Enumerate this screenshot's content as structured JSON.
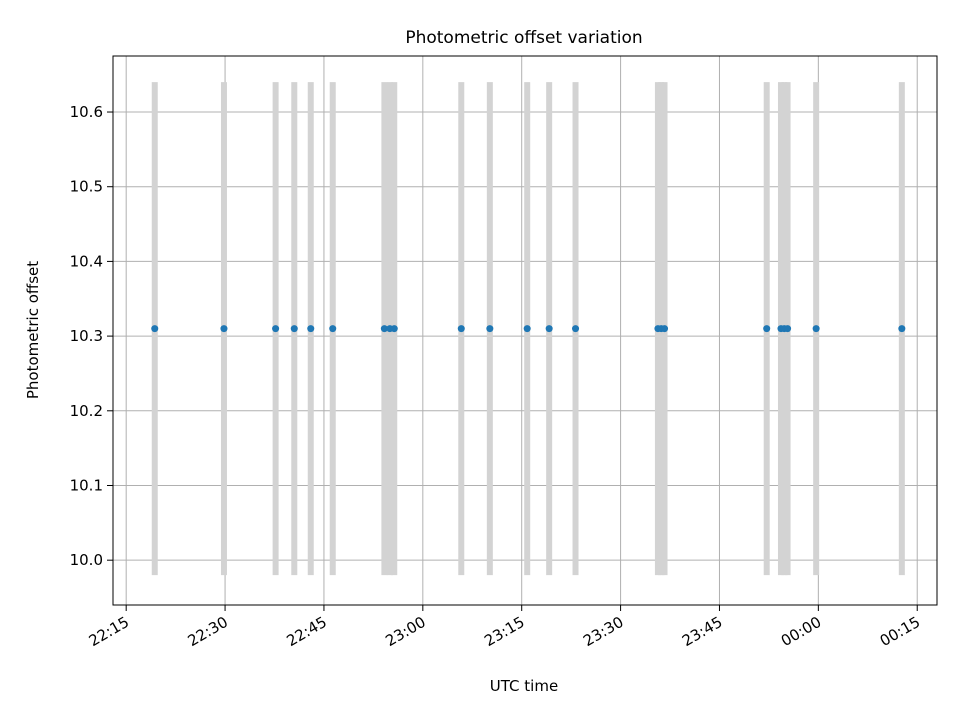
{
  "chart_data": {
    "type": "scatter",
    "title": "Photometric offset variation",
    "xlabel": "UTC time",
    "ylabel": "Photometric offset",
    "grid": true,
    "xlim": [
      "22:13",
      "00:18"
    ],
    "ylim": [
      9.94,
      10.675
    ],
    "x_ticks": [
      "22:15",
      "22:30",
      "22:45",
      "23:00",
      "23:15",
      "23:30",
      "23:45",
      "00:00",
      "00:15"
    ],
    "y_ticks": [
      "10.0",
      "10.1",
      "10.2",
      "10.3",
      "10.4",
      "10.5",
      "10.6"
    ],
    "series": [
      {
        "x": [
          "22:19:20",
          "22:29:50",
          "22:37:40",
          "22:40:30",
          "22:43:00",
          "22:46:20",
          "22:54:10",
          "22:55:00",
          "22:55:40",
          "23:05:50",
          "23:10:10",
          "23:15:50",
          "23:19:10",
          "23:23:10",
          "23:35:40",
          "23:36:10",
          "23:36:40",
          "23:52:10",
          "23:54:20",
          "23:54:50",
          "23:55:20",
          "23:59:40",
          "00:12:40"
        ],
        "y": [
          10.31,
          10.31,
          10.31,
          10.31,
          10.31,
          10.31,
          10.31,
          10.31,
          10.31,
          10.31,
          10.31,
          10.31,
          10.31,
          10.31,
          10.31,
          10.31,
          10.31,
          10.31,
          10.31,
          10.31,
          10.31,
          10.31,
          10.31
        ],
        "y_error": 0.33,
        "color": "#1f77b4",
        "error_color": "#d3d3d3"
      }
    ]
  }
}
